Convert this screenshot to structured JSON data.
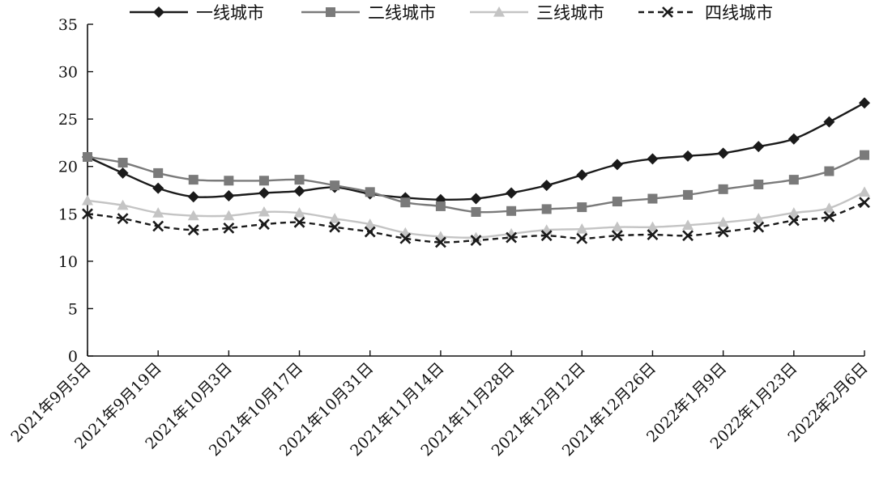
{
  "chart_data": {
    "type": "line",
    "xlabel": "",
    "ylabel": "",
    "ylim": [
      0,
      35
    ],
    "yticks": [
      0,
      5,
      10,
      15,
      20,
      25,
      30,
      35
    ],
    "grid": false,
    "legend_position": "top",
    "categories": [
      "2021年9月5日",
      "2021年9月12日",
      "2021年9月19日",
      "2021年9月26日",
      "2021年10月3日",
      "2021年10月10日",
      "2021年10月17日",
      "2021年10月24日",
      "2021年10月31日",
      "2021年11月7日",
      "2021年11月14日",
      "2021年11月21日",
      "2021年11月28日",
      "2021年12月5日",
      "2021年12月12日",
      "2021年12月19日",
      "2021年12月26日",
      "2022年1月2日",
      "2022年1月9日",
      "2022年1月16日",
      "2022年1月23日",
      "2022年1月30日",
      "2022年2月6日"
    ],
    "xtick_labels": [
      "2021年9月5日",
      "2021年9月19日",
      "2021年10月3日",
      "2021年10月17日",
      "2021年10月31日",
      "2021年11月14日",
      "2021年11月28日",
      "2021年12月12日",
      "2021年12月26日",
      "2022年1月9日",
      "2022年1月23日",
      "2022年2月6日"
    ],
    "series": [
      {
        "name": "一线城市",
        "color": "#1a1a1a",
        "marker": "diamond",
        "dash": "solid",
        "values": [
          21.0,
          19.3,
          17.7,
          16.8,
          16.9,
          17.2,
          17.4,
          17.8,
          17.1,
          16.7,
          16.5,
          16.6,
          17.2,
          18.0,
          19.1,
          20.2,
          20.8,
          21.1,
          21.4,
          22.1,
          22.9,
          24.7,
          26.7
        ]
      },
      {
        "name": "二线城市",
        "color": "#7a7a7a",
        "marker": "square",
        "dash": "solid",
        "values": [
          21.0,
          20.4,
          19.3,
          18.6,
          18.5,
          18.5,
          18.6,
          18.0,
          17.3,
          16.2,
          15.8,
          15.2,
          15.3,
          15.5,
          15.7,
          16.3,
          16.6,
          17.0,
          17.6,
          18.1,
          18.6,
          19.5,
          21.2
        ]
      },
      {
        "name": "三线城市",
        "color": "#c4c4c4",
        "marker": "triangle",
        "dash": "solid",
        "values": [
          16.4,
          15.9,
          15.1,
          14.8,
          14.8,
          15.2,
          15.1,
          14.5,
          13.9,
          13.0,
          12.6,
          12.5,
          12.9,
          13.3,
          13.4,
          13.6,
          13.6,
          13.8,
          14.1,
          14.5,
          15.1,
          15.6,
          17.3
        ]
      },
      {
        "name": "四线城市",
        "color": "#1a1a1a",
        "marker": "x",
        "dash": "dashed",
        "values": [
          15.0,
          14.5,
          13.7,
          13.3,
          13.5,
          13.9,
          14.1,
          13.6,
          13.1,
          12.4,
          12.0,
          12.2,
          12.5,
          12.7,
          12.4,
          12.7,
          12.8,
          12.7,
          13.1,
          13.6,
          14.3,
          14.7,
          16.2
        ]
      }
    ]
  }
}
